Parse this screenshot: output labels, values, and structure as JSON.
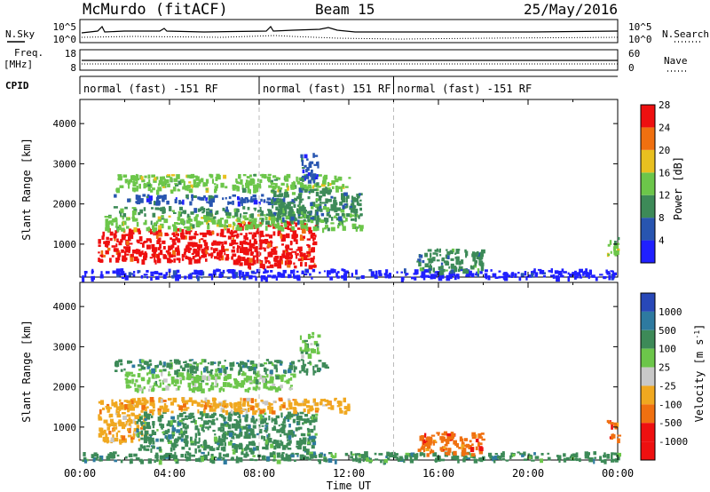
{
  "header": {
    "station": "McMurdo (fitACF)",
    "beam": "Beam 15",
    "date": "25/May/2016"
  },
  "noise_panel": {
    "left_label": "N.Sky",
    "right_label": "N.Search",
    "left_ticks": [
      "10^5",
      "10^0"
    ],
    "right_ticks": [
      "10^5",
      "10^0"
    ]
  },
  "freq_panel": {
    "left_label_1": "Freq.",
    "left_label_2": "[MHz]",
    "right_label": "Nave",
    "left_ticks": [
      "18",
      "8"
    ],
    "right_ticks": [
      "60",
      "0"
    ]
  },
  "cpid_panel": {
    "label": "CPID",
    "segments": [
      {
        "start_hour": 0.0,
        "end_hour": 8.0,
        "text": "normal (fast) -151 RF"
      },
      {
        "start_hour": 8.0,
        "end_hour": 14.0,
        "text": "normal (fast) 151 RF"
      },
      {
        "start_hour": 14.0,
        "end_hour": 24.0,
        "text": "normal (fast) -151 RF"
      }
    ]
  },
  "x_axis": {
    "label": "Time UT",
    "ticks": [
      "00:00",
      "04:00",
      "08:00",
      "12:00",
      "16:00",
      "20:00",
      "00:00"
    ]
  },
  "power_colorbar": {
    "label": "Power [dB]",
    "ticks": [
      "4",
      "8",
      "12",
      "16",
      "20",
      "24",
      "28"
    ],
    "colors": [
      "#2020ff",
      "#2855b0",
      "#3d8a58",
      "#6cc64a",
      "#e8c020",
      "#f07010",
      "#ee1010"
    ]
  },
  "velocity_colorbar": {
    "label": "Velocity [m s",
    "label_sup": "-1",
    "label_close": "]",
    "ticks": [
      "1000",
      "500",
      "100",
      "25",
      "-25",
      "-100",
      "-500",
      "-1000"
    ],
    "colors": [
      "#2848b8",
      "#2e7aa0",
      "#3d8a58",
      "#6cc64a",
      "#c8c8c8",
      "#f0a820",
      "#f07010",
      "#ee1010"
    ]
  },
  "chart_data": [
    {
      "type": "heatmap",
      "title": "Power [dB]",
      "xlabel": "Time UT",
      "ylabel": "Slant Range [km]",
      "xlim": [
        0,
        24
      ],
      "ylim": [
        180,
        4600
      ],
      "yticks": [
        1000,
        2000,
        3000,
        4000
      ],
      "regions": [
        {
          "t0": 0.8,
          "t1": 7.0,
          "r0": 600,
          "r1": 1400,
          "value_db": 28
        },
        {
          "t0": 7.0,
          "t1": 10.5,
          "r0": 450,
          "r1": 1600,
          "value_db": 28
        },
        {
          "t0": 1.0,
          "t1": 12.5,
          "r0": 1400,
          "r1": 1750,
          "value_db": 18
        },
        {
          "t0": 1.5,
          "t1": 10.0,
          "r0": 1750,
          "r1": 1950,
          "value_db": 14
        },
        {
          "t0": 1.5,
          "t1": 9.5,
          "r0": 2050,
          "r1": 2250,
          "value_db": 10
        },
        {
          "t0": 1.5,
          "t1": 12.0,
          "r0": 2350,
          "r1": 2750,
          "value_db": 18
        },
        {
          "t0": 8.5,
          "t1": 12.5,
          "r0": 1600,
          "r1": 2400,
          "value_db": 14
        },
        {
          "t0": 9.8,
          "t1": 10.6,
          "r0": 2600,
          "r1": 3300,
          "value_db": 10
        },
        {
          "t0": 0.0,
          "t1": 24.0,
          "r0": 180,
          "r1": 400,
          "value_db": 6
        },
        {
          "t0": 15.0,
          "t1": 18.0,
          "r0": 350,
          "r1": 900,
          "value_db": 14
        },
        {
          "t0": 23.5,
          "t1": 24.0,
          "r0": 700,
          "r1": 1200,
          "value_db": 18
        }
      ]
    },
    {
      "type": "heatmap",
      "title": "Velocity [m s-1]",
      "xlabel": "Time UT",
      "ylabel": "Slant Range [km]",
      "xlim": [
        0,
        24
      ],
      "ylim": [
        180,
        4600
      ],
      "yticks": [
        1000,
        2000,
        3000,
        4000
      ],
      "regions": [
        {
          "t0": 0.8,
          "t1": 3.0,
          "r0": 650,
          "r1": 1700,
          "value_ms": -100
        },
        {
          "t0": 2.5,
          "t1": 10.5,
          "r0": 450,
          "r1": 1400,
          "value_ms": 100
        },
        {
          "t0": 1.5,
          "t1": 12.0,
          "r0": 1400,
          "r1": 1750,
          "value_ms": -100
        },
        {
          "t0": 2.0,
          "t1": 9.5,
          "r0": 1950,
          "r1": 2400,
          "value_ms": 25
        },
        {
          "t0": 1.5,
          "t1": 11.0,
          "r0": 2400,
          "r1": 2700,
          "value_ms": 100
        },
        {
          "t0": 9.8,
          "t1": 10.6,
          "r0": 2800,
          "r1": 3400,
          "value_ms": 25
        },
        {
          "t0": 0.0,
          "t1": 24.0,
          "r0": 180,
          "r1": 400,
          "value_ms": 100
        },
        {
          "t0": 15.0,
          "t1": 18.0,
          "r0": 350,
          "r1": 900,
          "value_ms": -500
        },
        {
          "t0": 23.5,
          "t1": 24.0,
          "r0": 700,
          "r1": 1200,
          "value_ms": -500
        }
      ]
    }
  ]
}
